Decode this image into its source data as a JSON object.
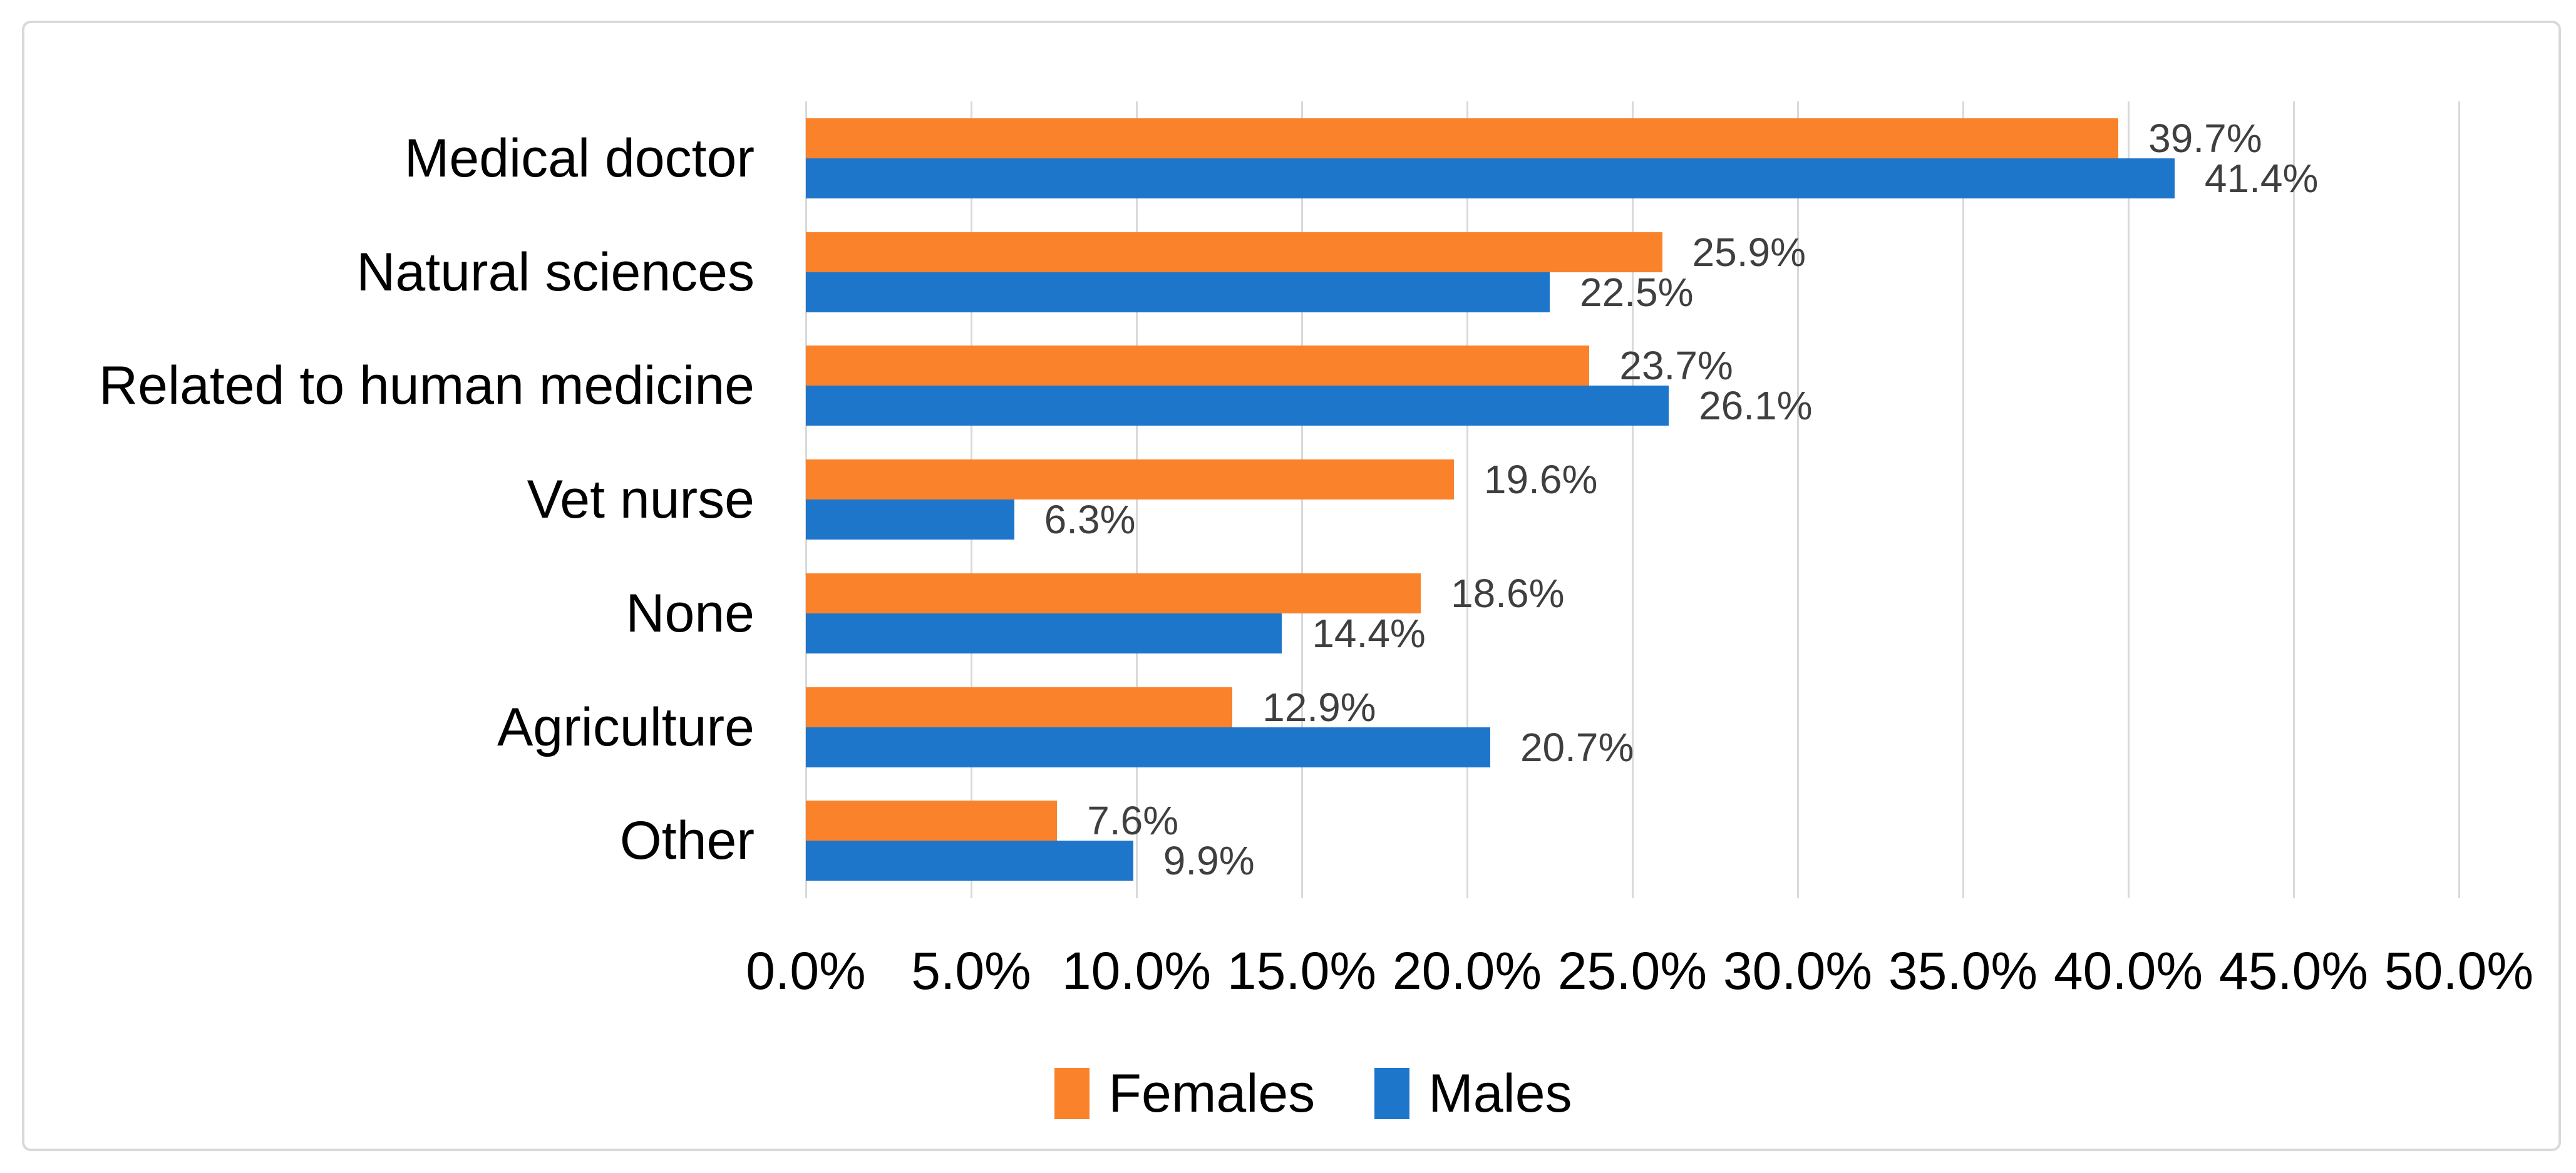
{
  "chart_data": {
    "type": "bar",
    "orientation": "horizontal",
    "title": "",
    "xlabel": "",
    "ylabel": "",
    "grid": "vertical",
    "legend_position": "bottom",
    "categories": [
      "Medical doctor",
      "Natural sciences",
      "Related to human medicine",
      "Vet nurse",
      "None",
      "Agriculture",
      "Other"
    ],
    "series": [
      {
        "name": "Females",
        "color": "#F9822A",
        "values": [
          39.7,
          25.9,
          23.7,
          19.6,
          18.6,
          12.9,
          7.6
        ],
        "labels": [
          "39.7%",
          "25.9%",
          "23.7%",
          "19.6%",
          "18.6%",
          "12.9%",
          "7.6%"
        ]
      },
      {
        "name": "Males",
        "color": "#1E76CB",
        "values": [
          41.4,
          22.5,
          26.1,
          6.3,
          14.4,
          20.7,
          9.9
        ],
        "labels": [
          "41.4%",
          "22.5%",
          "26.1%",
          "6.3%",
          "14.4%",
          "20.7%",
          "9.9%"
        ]
      }
    ],
    "x_axis": {
      "min": 0,
      "max": 50,
      "step": 5,
      "tick_labels": [
        "0.0%",
        "5.0%",
        "10.0%",
        "15.0%",
        "20.0%",
        "25.0%",
        "30.0%",
        "35.0%",
        "40.0%",
        "45.0%",
        "50.0%"
      ]
    },
    "data_labels_shown": true
  },
  "colors": {
    "gridline": "#D9D9D9",
    "frame_border": "#D9D9D9",
    "data_label_text": "#3F3F3F",
    "axis_text": "#000000",
    "background": "#FFFFFF"
  }
}
